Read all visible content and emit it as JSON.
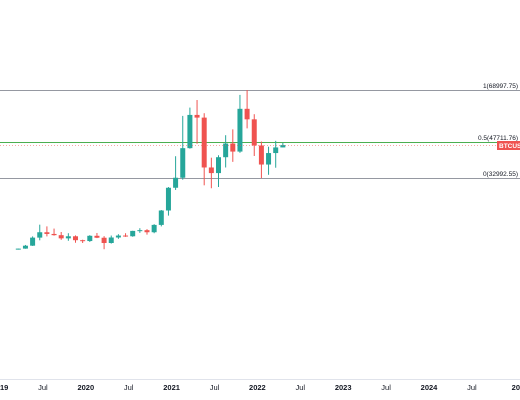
{
  "chart_data": {
    "type": "candlestick",
    "symbol": "BTCUSD",
    "interval": "monthly",
    "colors": {
      "up": "#26a69a",
      "down": "#ef5350",
      "fib_top": "#9598a1",
      "fib_mid": "#4caf50",
      "fib_bottom": "#9598a1",
      "last_price": "#ef5350"
    },
    "fib_levels": [
      {
        "label": "1(68997.75)",
        "value": 68997.75,
        "color": "#9598a1"
      },
      {
        "label": "0.5(47711.76)",
        "value": 47711.76,
        "color": "#4caf50"
      },
      {
        "label": "0(32992.55)",
        "value": 32992.55,
        "color": "#9598a1"
      }
    ],
    "last_price": {
      "label": "BTCUSD",
      "value": 46450
    },
    "x_ticks": [
      {
        "label": "19",
        "date": "2019-01",
        "bold": true
      },
      {
        "label": "Jul",
        "date": "2019-07",
        "bold": false
      },
      {
        "label": "2020",
        "date": "2020-01",
        "bold": true
      },
      {
        "label": "Jul",
        "date": "2020-07",
        "bold": false
      },
      {
        "label": "2021",
        "date": "2021-01",
        "bold": true
      },
      {
        "label": "Jul",
        "date": "2021-07",
        "bold": false
      },
      {
        "label": "2022",
        "date": "2022-01",
        "bold": true
      },
      {
        "label": "Jul",
        "date": "2022-07",
        "bold": false
      },
      {
        "label": "2023",
        "date": "2023-01",
        "bold": true
      },
      {
        "label": "Jul",
        "date": "2023-07",
        "bold": false
      },
      {
        "label": "2024",
        "date": "2024-01",
        "bold": true
      },
      {
        "label": "Jul",
        "date": "2024-07",
        "bold": false
      },
      {
        "label": "20",
        "date": "2025-01",
        "bold": true
      }
    ],
    "candles": [
      {
        "date": "2019-03",
        "open": 3800,
        "high": 4100,
        "low": 3700,
        "close": 4100
      },
      {
        "date": "2019-04",
        "open": 4100,
        "high": 5600,
        "low": 4050,
        "close": 5300
      },
      {
        "date": "2019-05",
        "open": 5300,
        "high": 9100,
        "low": 5200,
        "close": 8600
      },
      {
        "date": "2019-06",
        "open": 8600,
        "high": 13900,
        "low": 7500,
        "close": 10800
      },
      {
        "date": "2019-07",
        "open": 10800,
        "high": 13200,
        "low": 9100,
        "close": 10100
      },
      {
        "date": "2019-08",
        "open": 10100,
        "high": 12300,
        "low": 9400,
        "close": 9600
      },
      {
        "date": "2019-09",
        "open": 9600,
        "high": 10900,
        "low": 7700,
        "close": 8300
      },
      {
        "date": "2019-10",
        "open": 8300,
        "high": 10400,
        "low": 7300,
        "close": 9150
      },
      {
        "date": "2019-11",
        "open": 9150,
        "high": 9500,
        "low": 6500,
        "close": 7550
      },
      {
        "date": "2019-12",
        "open": 7550,
        "high": 7750,
        "low": 6400,
        "close": 7200
      },
      {
        "date": "2020-01",
        "open": 7200,
        "high": 9600,
        "low": 6850,
        "close": 9350
      },
      {
        "date": "2020-02",
        "open": 9350,
        "high": 10500,
        "low": 8400,
        "close": 8550
      },
      {
        "date": "2020-03",
        "open": 8550,
        "high": 9200,
        "low": 3850,
        "close": 6400
      },
      {
        "date": "2020-04",
        "open": 6400,
        "high": 9450,
        "low": 6150,
        "close": 8650
      },
      {
        "date": "2020-05",
        "open": 8650,
        "high": 10000,
        "low": 8100,
        "close": 9450
      },
      {
        "date": "2020-06",
        "open": 9450,
        "high": 10400,
        "low": 8900,
        "close": 9150
      },
      {
        "date": "2020-07",
        "open": 9150,
        "high": 11400,
        "low": 8950,
        "close": 11350
      },
      {
        "date": "2020-08",
        "open": 11350,
        "high": 12450,
        "low": 10550,
        "close": 11650
      },
      {
        "date": "2020-09",
        "open": 11650,
        "high": 12050,
        "low": 9850,
        "close": 10800
      },
      {
        "date": "2020-10",
        "open": 10800,
        "high": 14100,
        "low": 10400,
        "close": 13800
      },
      {
        "date": "2020-11",
        "open": 13800,
        "high": 19900,
        "low": 13200,
        "close": 19700
      },
      {
        "date": "2020-12",
        "open": 19700,
        "high": 29300,
        "low": 17600,
        "close": 29000
      },
      {
        "date": "2021-01",
        "open": 29000,
        "high": 41900,
        "low": 28100,
        "close": 33100
      },
      {
        "date": "2021-02",
        "open": 33100,
        "high": 58400,
        "low": 32300,
        "close": 45200
      },
      {
        "date": "2021-03",
        "open": 45200,
        "high": 61800,
        "low": 45000,
        "close": 58800
      },
      {
        "date": "2021-04",
        "open": 58800,
        "high": 64900,
        "low": 47000,
        "close": 57700
      },
      {
        "date": "2021-05",
        "open": 57700,
        "high": 59500,
        "low": 30000,
        "close": 37300
      },
      {
        "date": "2021-06",
        "open": 37300,
        "high": 41300,
        "low": 28800,
        "close": 35000
      },
      {
        "date": "2021-07",
        "open": 35000,
        "high": 42300,
        "low": 29300,
        "close": 41500
      },
      {
        "date": "2021-08",
        "open": 41500,
        "high": 50500,
        "low": 37300,
        "close": 47100
      },
      {
        "date": "2021-09",
        "open": 47100,
        "high": 52900,
        "low": 39600,
        "close": 43800
      },
      {
        "date": "2021-10",
        "open": 43800,
        "high": 67000,
        "low": 43300,
        "close": 61300
      },
      {
        "date": "2021-11",
        "open": 61300,
        "high": 69000,
        "low": 53300,
        "close": 57000
      },
      {
        "date": "2021-12",
        "open": 57000,
        "high": 59100,
        "low": 42000,
        "close": 46300
      },
      {
        "date": "2022-01",
        "open": 46300,
        "high": 47900,
        "low": 32950,
        "close": 38500
      },
      {
        "date": "2022-02",
        "open": 38500,
        "high": 45800,
        "low": 34300,
        "close": 43200
      },
      {
        "date": "2022-03",
        "open": 43200,
        "high": 48200,
        "low": 37200,
        "close": 45500
      },
      {
        "date": "2022-04",
        "open": 45500,
        "high": 47400,
        "low": 45500,
        "close": 46450
      }
    ]
  }
}
